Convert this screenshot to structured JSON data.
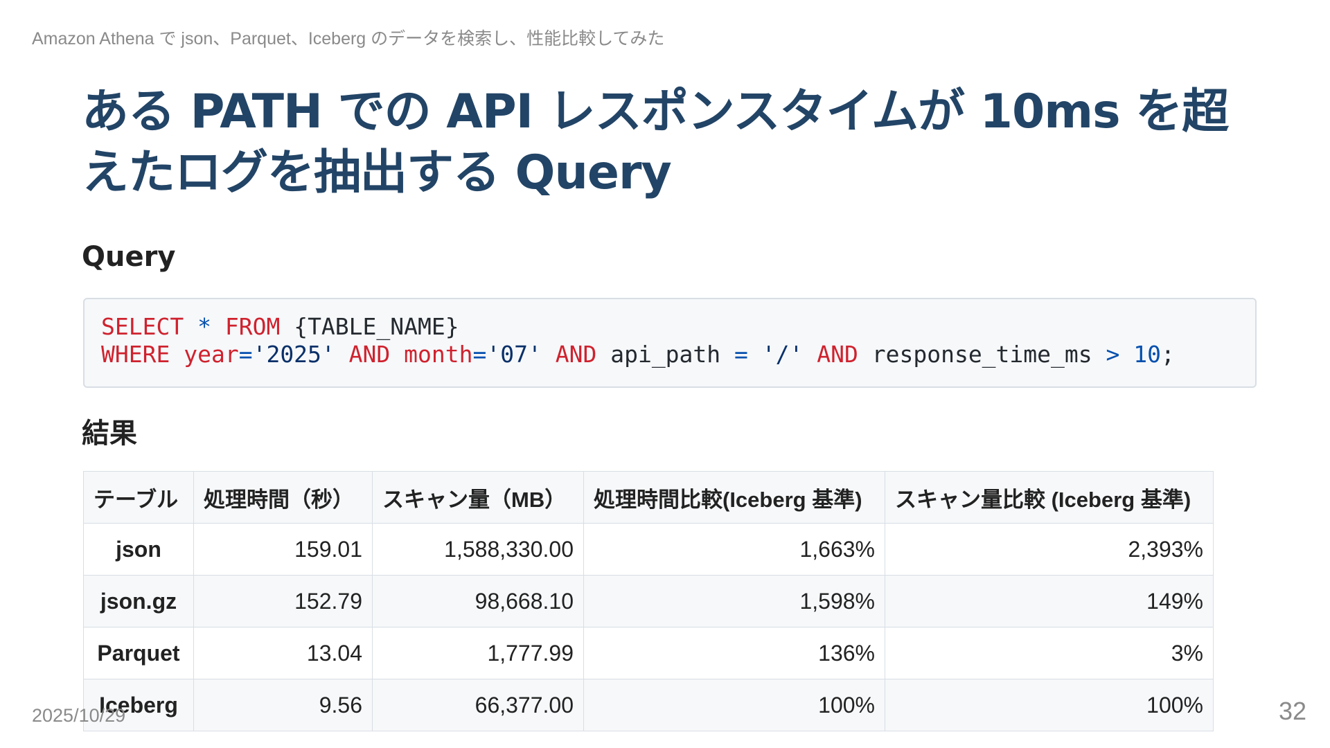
{
  "header": {
    "subtitle": "Amazon Athena で json、Parquet、Iceberg のデータを検索し、性能比較してみた"
  },
  "title": "ある PATH での API レスポンスタイムが 10ms を超えたログを抽出する Query",
  "sections": {
    "query_heading": "Query",
    "result_heading": "結果"
  },
  "code": {
    "line1": {
      "t1": "SELECT",
      "t2": " ",
      "t3": "*",
      "t4": " ",
      "t5": "FROM",
      "t6": " {TABLE_NAME}"
    },
    "line2": {
      "t1": "WHERE",
      "t2": " ",
      "t3": "year",
      "t4": "=",
      "t5": "'2025'",
      "t6": " ",
      "t7": "AND",
      "t8": " ",
      "t9": "month",
      "t10": "=",
      "t11": "'07'",
      "t12": " ",
      "t13": "AND",
      "t14": " api_path ",
      "t15": "=",
      "t16": " ",
      "t17": "'/'",
      "t18": " ",
      "t19": "AND",
      "t20": " response_time_ms ",
      "t21": ">",
      "t22": " ",
      "t23": "10",
      "t24": ";"
    }
  },
  "table": {
    "headers": [
      "テーブル",
      "処理時間（秒）",
      "スキャン量（MB）",
      "処理時間比較(Iceberg 基準)",
      "スキャン量比較 (Iceberg 基準)"
    ],
    "rows": [
      [
        "json",
        "159.01",
        "1,588,330.00",
        "1,663%",
        "2,393%"
      ],
      [
        "json.gz",
        "152.79",
        "98,668.10",
        "1,598%",
        "149%"
      ],
      [
        "Parquet",
        "13.04",
        "1,777.99",
        "136%",
        "3%"
      ],
      [
        "Iceberg",
        "9.56",
        "66,377.00",
        "100%",
        "100%"
      ]
    ]
  },
  "footer": {
    "date": "2025/10/29",
    "page_number": "32"
  },
  "colors": {
    "title": "#224466",
    "keyword": "#cf222e",
    "operator": "#0550ae",
    "string": "#0a3069",
    "code_bg": "#f6f8fa"
  }
}
